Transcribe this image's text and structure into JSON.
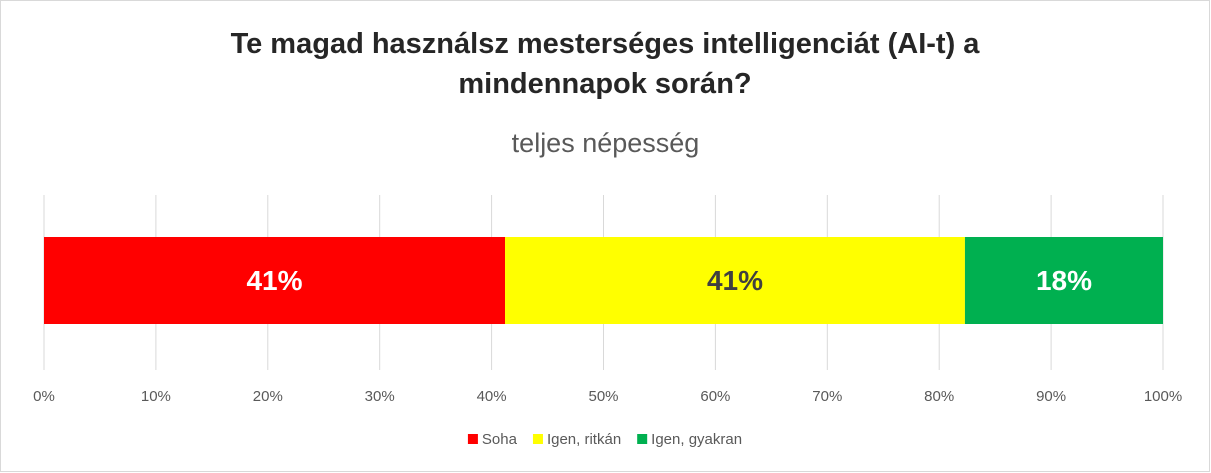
{
  "chart_data": {
    "type": "stacked_bar_horizontal",
    "title": "Te magad használsz mesterséges intelligenciát (AI-t) a mindennapok során?",
    "subtitle": "teljes népesség",
    "series": [
      {
        "name": "Soha",
        "color": "#ff0000",
        "values": [
          41.2
        ],
        "value_labels": [
          "41%"
        ],
        "label_color": "#ffffff"
      },
      {
        "name": "Igen, ritkán",
        "color": "#ffff00",
        "values": [
          41.1
        ],
        "value_labels": [
          "41%"
        ],
        "label_color": "#404040"
      },
      {
        "name": "Igen, gyakran",
        "color": "#00b050",
        "values": [
          17.7
        ],
        "value_labels": [
          "18%"
        ],
        "label_color": "#ffffff"
      }
    ],
    "xlim": [
      0,
      100
    ],
    "xticks": [
      {
        "value": 0,
        "label": "0%"
      },
      {
        "value": 10,
        "label": "10%"
      },
      {
        "value": 20,
        "label": "20%"
      },
      {
        "value": 30,
        "label": "30%"
      },
      {
        "value": 40,
        "label": "40%"
      },
      {
        "value": 50,
        "label": "50%"
      },
      {
        "value": 60,
        "label": "60%"
      },
      {
        "value": 70,
        "label": "70%"
      },
      {
        "value": 80,
        "label": "80%"
      },
      {
        "value": 90,
        "label": "90%"
      },
      {
        "value": 100,
        "label": "100%"
      }
    ],
    "grid": true,
    "legend": "bottom"
  }
}
